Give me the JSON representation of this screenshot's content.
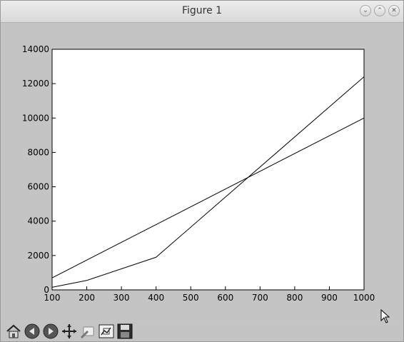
{
  "window": {
    "title": "Figure 1",
    "buttons": [
      "minimize",
      "maximize",
      "close"
    ]
  },
  "toolbar": {
    "items": [
      "home-icon",
      "back-icon",
      "forward-icon",
      "pan-icon",
      "zoom-icon",
      "subplots-icon",
      "save-icon"
    ]
  },
  "chart_data": {
    "type": "line",
    "title": "",
    "xlabel": "",
    "ylabel": "",
    "xlim": [
      100,
      1000
    ],
    "ylim": [
      0,
      14000
    ],
    "xticks": [
      100,
      200,
      300,
      400,
      500,
      600,
      700,
      800,
      900,
      1000
    ],
    "yticks": [
      0,
      2000,
      4000,
      6000,
      8000,
      10000,
      12000,
      14000
    ],
    "grid": false,
    "line_color": "#000000",
    "series": [
      {
        "x": [
          100,
          1000
        ],
        "y": [
          700,
          10000
        ]
      },
      {
        "x": [
          100,
          200,
          400,
          1000
        ],
        "y": [
          150,
          550,
          1900,
          12400
        ]
      }
    ]
  }
}
